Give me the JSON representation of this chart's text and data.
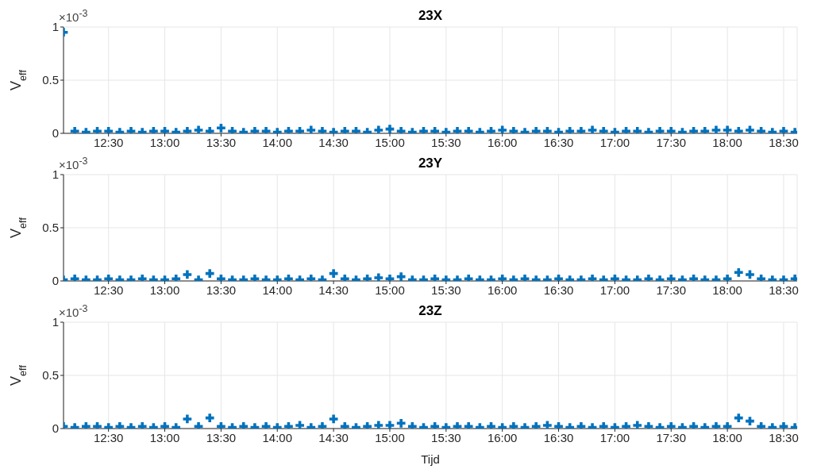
{
  "chart_data": [
    {
      "type": "scatter",
      "title": "23X",
      "ylabel": "V$_{eff}$",
      "annotations": [
        "×10$^{-3}$"
      ],
      "marker": "cross",
      "grid": true,
      "xlim": [
        12.1,
        18.62
      ],
      "ylim": [
        0,
        1
      ],
      "yticks": [
        0,
        0.5,
        1
      ],
      "xticks": [
        {
          "value": 12.5,
          "label": "12:30"
        },
        {
          "value": 13,
          "label": "13:00"
        },
        {
          "value": 13.5,
          "label": "13:30"
        },
        {
          "value": 14,
          "label": "14:00"
        },
        {
          "value": 14.5,
          "label": "14:30"
        },
        {
          "value": 15,
          "label": "15:00"
        },
        {
          "value": 15.5,
          "label": "15:30"
        },
        {
          "value": 16,
          "label": "16:00"
        },
        {
          "value": 16.5,
          "label": "16:30"
        },
        {
          "value": 17,
          "label": "17:00"
        },
        {
          "value": 17.5,
          "label": "17:30"
        },
        {
          "value": 18,
          "label": "18:00"
        },
        {
          "value": 18.5,
          "label": "18:30"
        }
      ],
      "x": [
        12.1,
        12.2,
        12.3,
        12.4,
        12.5,
        12.6,
        12.7,
        12.8,
        12.9,
        13.0,
        13.1,
        13.2,
        13.3,
        13.4,
        13.5,
        13.6,
        13.7,
        13.8,
        13.9,
        14.0,
        14.1,
        14.2,
        14.3,
        14.4,
        14.5,
        14.6,
        14.7,
        14.8,
        14.9,
        15.0,
        15.1,
        15.2,
        15.3,
        15.4,
        15.5,
        15.6,
        15.7,
        15.8,
        15.9,
        16.0,
        16.1,
        16.2,
        16.3,
        16.4,
        16.5,
        16.6,
        16.7,
        16.8,
        16.9,
        17.0,
        17.1,
        17.2,
        17.3,
        17.4,
        17.5,
        17.6,
        17.7,
        17.8,
        17.9,
        18.0,
        18.1,
        18.2,
        18.3,
        18.4,
        18.5,
        18.6
      ],
      "series": [
        {
          "color": "#0072bd",
          "values": [
            0.95,
            0.02,
            0.01,
            0.02,
            0.02,
            0.01,
            0.02,
            0.01,
            0.02,
            0.02,
            0.01,
            0.02,
            0.03,
            0.02,
            0.05,
            0.02,
            0.01,
            0.02,
            0.02,
            0.01,
            0.02,
            0.02,
            0.03,
            0.02,
            0.01,
            0.02,
            0.02,
            0.01,
            0.03,
            0.04,
            0.02,
            0.01,
            0.02,
            0.02,
            0.01,
            0.02,
            0.02,
            0.01,
            0.02,
            0.03,
            0.02,
            0.01,
            0.02,
            0.02,
            0.01,
            0.02,
            0.02,
            0.03,
            0.02,
            0.01,
            0.02,
            0.02,
            0.01,
            0.02,
            0.02,
            0.01,
            0.02,
            0.02,
            0.03,
            0.03,
            0.02,
            0.03,
            0.02,
            0.01,
            0.02,
            0.01
          ]
        }
      ]
    },
    {
      "type": "scatter",
      "title": "23Y",
      "ylabel": "V$_{eff}$",
      "annotations": [
        "×10$^{-3}$"
      ],
      "marker": "cross",
      "grid": true,
      "xlim": [
        12.1,
        18.62
      ],
      "ylim": [
        0,
        1
      ],
      "yticks": [
        0,
        0.5,
        1
      ],
      "xticks": [
        {
          "value": 12.5,
          "label": "12:30"
        },
        {
          "value": 13,
          "label": "13:00"
        },
        {
          "value": 13.5,
          "label": "13:30"
        },
        {
          "value": 14,
          "label": "14:00"
        },
        {
          "value": 14.5,
          "label": "14:30"
        },
        {
          "value": 15,
          "label": "15:00"
        },
        {
          "value": 15.5,
          "label": "15:30"
        },
        {
          "value": 16,
          "label": "16:00"
        },
        {
          "value": 16.5,
          "label": "16:30"
        },
        {
          "value": 17,
          "label": "17:00"
        },
        {
          "value": 17.5,
          "label": "17:30"
        },
        {
          "value": 18,
          "label": "18:00"
        },
        {
          "value": 18.5,
          "label": "18:30"
        }
      ],
      "x": [
        12.1,
        12.2,
        12.3,
        12.4,
        12.5,
        12.6,
        12.7,
        12.8,
        12.9,
        13.0,
        13.1,
        13.2,
        13.3,
        13.4,
        13.5,
        13.6,
        13.7,
        13.8,
        13.9,
        14.0,
        14.1,
        14.2,
        14.3,
        14.4,
        14.5,
        14.6,
        14.7,
        14.8,
        14.9,
        15.0,
        15.1,
        15.2,
        15.3,
        15.4,
        15.5,
        15.6,
        15.7,
        15.8,
        15.9,
        16.0,
        16.1,
        16.2,
        16.3,
        16.4,
        16.5,
        16.6,
        16.7,
        16.8,
        16.9,
        17.0,
        17.1,
        17.2,
        17.3,
        17.4,
        17.5,
        17.6,
        17.7,
        17.8,
        17.9,
        18.0,
        18.1,
        18.2,
        18.3,
        18.4,
        18.5,
        18.6
      ],
      "series": [
        {
          "color": "#0072bd",
          "values": [
            0.01,
            0.02,
            0.01,
            0.01,
            0.02,
            0.01,
            0.01,
            0.02,
            0.01,
            0.01,
            0.02,
            0.06,
            0.01,
            0.07,
            0.02,
            0.01,
            0.01,
            0.02,
            0.01,
            0.01,
            0.02,
            0.01,
            0.02,
            0.01,
            0.07,
            0.02,
            0.01,
            0.02,
            0.03,
            0.02,
            0.04,
            0.01,
            0.01,
            0.02,
            0.01,
            0.01,
            0.02,
            0.01,
            0.01,
            0.02,
            0.01,
            0.02,
            0.01,
            0.01,
            0.02,
            0.01,
            0.01,
            0.02,
            0.01,
            0.02,
            0.01,
            0.01,
            0.02,
            0.01,
            0.02,
            0.01,
            0.02,
            0.01,
            0.01,
            0.02,
            0.08,
            0.06,
            0.02,
            0.01,
            0.01,
            0.02
          ]
        }
      ]
    },
    {
      "type": "scatter",
      "title": "23Z",
      "ylabel": "V$_{eff}$",
      "xlabel": "Tijd",
      "annotations": [
        "×10$^{-3}$"
      ],
      "marker": "cross",
      "grid": true,
      "xlim": [
        12.1,
        18.62
      ],
      "ylim": [
        0,
        1
      ],
      "yticks": [
        0,
        0.5,
        1
      ],
      "xticks": [
        {
          "value": 12.5,
          "label": "12:30"
        },
        {
          "value": 13,
          "label": "13:00"
        },
        {
          "value": 13.5,
          "label": "13:30"
        },
        {
          "value": 14,
          "label": "14:00"
        },
        {
          "value": 14.5,
          "label": "14:30"
        },
        {
          "value": 15,
          "label": "15:00"
        },
        {
          "value": 15.5,
          "label": "15:30"
        },
        {
          "value": 16,
          "label": "16:00"
        },
        {
          "value": 16.5,
          "label": "16:30"
        },
        {
          "value": 17,
          "label": "17:00"
        },
        {
          "value": 17.5,
          "label": "17:30"
        },
        {
          "value": 18,
          "label": "18:00"
        },
        {
          "value": 18.5,
          "label": "18:30"
        }
      ],
      "x": [
        12.1,
        12.2,
        12.3,
        12.4,
        12.5,
        12.6,
        12.7,
        12.8,
        12.9,
        13.0,
        13.1,
        13.2,
        13.3,
        13.4,
        13.5,
        13.6,
        13.7,
        13.8,
        13.9,
        14.0,
        14.1,
        14.2,
        14.3,
        14.4,
        14.5,
        14.6,
        14.7,
        14.8,
        14.9,
        15.0,
        15.1,
        15.2,
        15.3,
        15.4,
        15.5,
        15.6,
        15.7,
        15.8,
        15.9,
        16.0,
        16.1,
        16.2,
        16.3,
        16.4,
        16.5,
        16.6,
        16.7,
        16.8,
        16.9,
        17.0,
        17.1,
        17.2,
        17.3,
        17.4,
        17.5,
        17.6,
        17.7,
        17.8,
        17.9,
        18.0,
        18.1,
        18.2,
        18.3,
        18.4,
        18.5,
        18.6
      ],
      "series": [
        {
          "color": "#0072bd",
          "values": [
            0.02,
            0.01,
            0.02,
            0.02,
            0.01,
            0.02,
            0.01,
            0.02,
            0.01,
            0.02,
            0.01,
            0.09,
            0.02,
            0.1,
            0.02,
            0.01,
            0.02,
            0.01,
            0.02,
            0.01,
            0.02,
            0.03,
            0.01,
            0.02,
            0.09,
            0.02,
            0.01,
            0.02,
            0.03,
            0.03,
            0.05,
            0.02,
            0.01,
            0.02,
            0.01,
            0.02,
            0.02,
            0.01,
            0.02,
            0.01,
            0.02,
            0.01,
            0.02,
            0.03,
            0.02,
            0.01,
            0.02,
            0.01,
            0.02,
            0.01,
            0.02,
            0.03,
            0.02,
            0.01,
            0.02,
            0.01,
            0.02,
            0.01,
            0.02,
            0.02,
            0.1,
            0.07,
            0.02,
            0.01,
            0.02,
            0.01
          ]
        }
      ]
    }
  ]
}
